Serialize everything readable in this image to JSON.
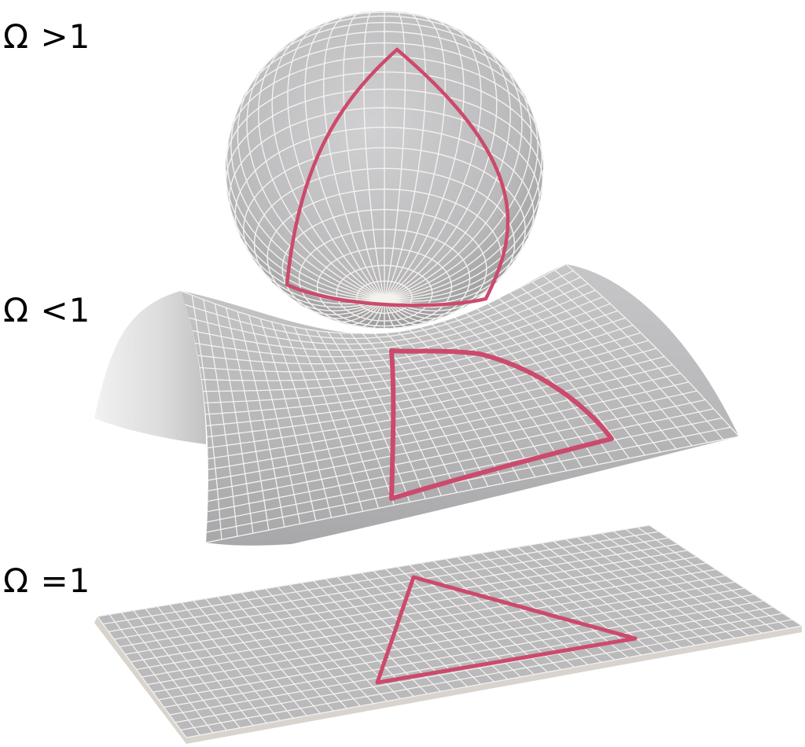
{
  "labels": {
    "closed": "Ω >1",
    "open": "Ω <1",
    "flat": "Ω =1"
  },
  "colors": {
    "surface": "#b9b8ba",
    "grid": "#f4f2ee",
    "triangle": "#cc4a6c",
    "background": "#ffffff"
  },
  "surfaces": [
    "sphere",
    "saddle",
    "plane"
  ]
}
